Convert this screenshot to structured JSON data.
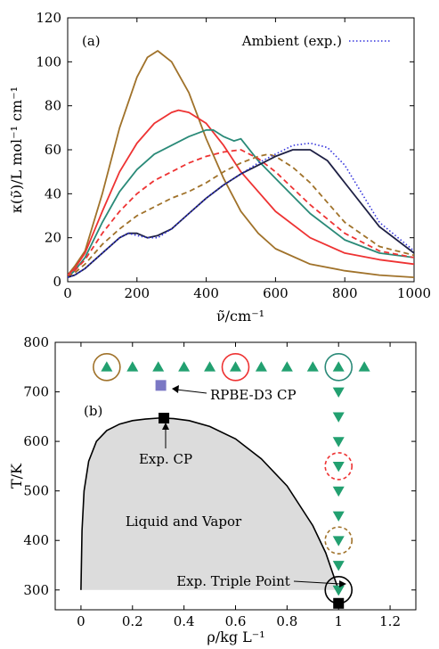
{
  "chart_data": [
    {
      "panel_label": "(a)",
      "type": "line",
      "xlabel": "ν̃/cm⁻¹",
      "ylabel": "κ(ν̃)/L mol⁻¹ cm⁻¹",
      "xlim": [
        0,
        1000
      ],
      "ylim": [
        0,
        120
      ],
      "xticks": [
        0,
        200,
        400,
        600,
        800,
        1000
      ],
      "yticks": [
        0,
        20,
        40,
        60,
        80,
        100,
        120
      ],
      "legend_position": "top-right",
      "colors": {
        "brown": "#a0722a",
        "red": "#ee3333",
        "teal": "#2a8a78",
        "darkblue": "#1e2044",
        "blue": "#3333dd"
      },
      "series": [
        {
          "color": "brown",
          "dash": "solid",
          "x": [
            0,
            20,
            50,
            100,
            150,
            200,
            230,
            260,
            300,
            350,
            400,
            450,
            500,
            550,
            600,
            700,
            800,
            900,
            1000
          ],
          "y": [
            3,
            7,
            14,
            40,
            70,
            93,
            102,
            105,
            100,
            86,
            65,
            47,
            32,
            22,
            15,
            8,
            5,
            3,
            2
          ]
        },
        {
          "color": "red",
          "dash": "solid",
          "x": [
            0,
            20,
            50,
            100,
            150,
            200,
            250,
            300,
            320,
            350,
            400,
            450,
            500,
            600,
            700,
            800,
            900,
            1000
          ],
          "y": [
            3,
            6,
            13,
            32,
            50,
            63,
            72,
            77,
            78,
            77,
            72,
            62,
            50,
            32,
            20,
            13,
            10,
            8
          ]
        },
        {
          "color": "teal",
          "dash": "solid",
          "x": [
            0,
            20,
            50,
            100,
            150,
            200,
            250,
            300,
            350,
            400,
            420,
            450,
            480,
            500,
            550,
            600,
            700,
            800,
            900,
            1000
          ],
          "y": [
            2,
            5,
            11,
            27,
            41,
            51,
            58,
            62,
            66,
            69,
            69,
            66,
            64,
            65,
            55,
            47,
            31,
            19,
            13,
            11
          ]
        },
        {
          "color": "red",
          "dash": "dashed",
          "x": [
            0,
            20,
            50,
            100,
            150,
            200,
            250,
            300,
            350,
            400,
            450,
            500,
            550,
            600,
            700,
            800,
            900,
            1000
          ],
          "y": [
            2,
            5,
            10,
            22,
            32,
            40,
            46,
            50,
            54,
            57,
            59,
            60,
            56,
            50,
            35,
            22,
            14,
            11
          ]
        },
        {
          "color": "brown",
          "dash": "dashed",
          "x": [
            0,
            20,
            50,
            100,
            150,
            200,
            250,
            300,
            350,
            400,
            450,
            500,
            550,
            580,
            600,
            650,
            700,
            800,
            900,
            1000
          ],
          "y": [
            2,
            4,
            8,
            17,
            24,
            30,
            34,
            38,
            41,
            45,
            50,
            54,
            57,
            58,
            57,
            52,
            45,
            27,
            16,
            12
          ]
        },
        {
          "color": "darkblue",
          "dash": "solid",
          "x": [
            0,
            20,
            50,
            100,
            150,
            175,
            200,
            230,
            260,
            300,
            350,
            400,
            450,
            500,
            550,
            600,
            650,
            680,
            700,
            750,
            800,
            900,
            1000
          ],
          "y": [
            2,
            3,
            6,
            13,
            20,
            22,
            22,
            20,
            21,
            24,
            31,
            38,
            44,
            49,
            53,
            57,
            60,
            60,
            60,
            55,
            45,
            25,
            13
          ]
        },
        {
          "name": "Ambient (exp.)",
          "color": "blue",
          "dash": "dotted",
          "x": [
            0,
            20,
            50,
            100,
            150,
            175,
            200,
            230,
            260,
            300,
            350,
            400,
            450,
            500,
            550,
            600,
            650,
            700,
            750,
            800,
            850,
            900,
            1000
          ],
          "y": [
            2,
            3,
            6,
            13,
            20,
            22,
            21,
            20,
            20,
            24,
            31,
            38,
            44,
            49,
            54,
            58,
            62,
            63,
            61,
            53,
            40,
            27,
            14
          ]
        }
      ]
    },
    {
      "panel_label": "(b)",
      "type": "scatter",
      "xlabel": "ρ/kg L⁻¹",
      "ylabel": "T/K",
      "xlim": [
        -0.1,
        1.3
      ],
      "ylim": [
        260,
        800
      ],
      "xticks": [
        0,
        0.2,
        0.4,
        0.6,
        0.8,
        1.0,
        1.2
      ],
      "yticks": [
        300,
        400,
        500,
        600,
        700,
        800
      ],
      "region_label": "Liquid and Vapor",
      "coexistence_curve": {
        "rho": [
          0,
          0.004,
          0.012,
          0.03,
          0.06,
          0.1,
          0.15,
          0.2,
          0.25,
          0.3,
          0.322,
          0.36,
          0.42,
          0.5,
          0.6,
          0.7,
          0.8,
          0.9,
          0.95,
          0.98,
          1.0
        ],
        "T": [
          300,
          420,
          500,
          560,
          600,
          622,
          635,
          642,
          645,
          647,
          647,
          646,
          642,
          630,
          605,
          565,
          510,
          430,
          375,
          330,
          300
        ]
      },
      "points": {
        "triangles_up": {
          "rho": [
            0.1,
            0.2,
            0.3,
            0.4,
            0.5,
            0.6,
            0.7,
            0.8,
            0.9,
            1.0,
            1.1
          ],
          "T": [
            750,
            750,
            750,
            750,
            750,
            750,
            750,
            750,
            750,
            750,
            750
          ],
          "color": "#22a070"
        },
        "triangles_down": {
          "rho": [
            1.0,
            1.0,
            1.0,
            1.0,
            1.0,
            1.0,
            1.0,
            1.0,
            1.0,
            1.0
          ],
          "T": [
            700,
            650,
            600,
            550,
            500,
            450,
            400,
            350,
            300,
            300
          ],
          "color": "#22a070"
        },
        "rpbe_d3_cp": {
          "label": "RPBE-D3 CP",
          "rho": 0.31,
          "T": 713,
          "color": "#7b78c4"
        },
        "exp_cp": {
          "label": "Exp. CP",
          "rho": 0.322,
          "T": 647,
          "color": "#000000"
        },
        "exp_triple": {
          "label": "Exp. Triple Point",
          "rho": 1.0,
          "T": 273,
          "color": "#000000"
        }
      },
      "circles": [
        {
          "rho": 0.1,
          "T": 750,
          "color": "#a0722a",
          "dash": "solid"
        },
        {
          "rho": 0.6,
          "T": 750,
          "color": "#ee3333",
          "dash": "solid"
        },
        {
          "rho": 1.0,
          "T": 750,
          "color": "#2a8a78",
          "dash": "solid"
        },
        {
          "rho": 1.0,
          "T": 550,
          "color": "#ee3333",
          "dash": "dashed"
        },
        {
          "rho": 1.0,
          "T": 400,
          "color": "#a0722a",
          "dash": "dashed"
        },
        {
          "rho": 1.0,
          "T": 300,
          "color": "#000000",
          "dash": "solid"
        }
      ]
    }
  ]
}
